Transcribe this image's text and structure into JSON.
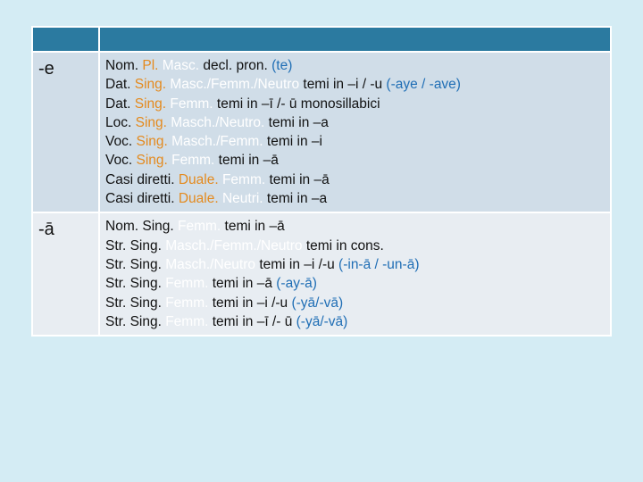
{
  "colors": {
    "header": "#2b7aa0",
    "row1": "#d0dde8",
    "row2": "#e8edf2",
    "orange": "#e48a1e",
    "blue": "#1f6eb5",
    "white": "#ffffff"
  },
  "rows": [
    {
      "suffix": "-e",
      "lines": [
        {
          "segments": [
            {
              "t": "Nom.",
              "c": "k"
            },
            {
              "t": " Pl.",
              "c": "o"
            },
            {
              "t": " Masc.",
              "c": "w"
            },
            {
              "t": " decl. pron. ",
              "c": "k"
            },
            {
              "t": "(te)",
              "c": "b"
            }
          ]
        },
        {
          "segments": [
            {
              "t": "Dat.",
              "c": "k"
            },
            {
              "t": " Sing.",
              "c": "o"
            },
            {
              "t": " Masc./Femm./Neutro",
              "c": "w"
            },
            {
              "t": " temi in –i / -u ",
              "c": "k"
            },
            {
              "t": "(-aye / -ave)",
              "c": "b"
            }
          ]
        },
        {
          "segments": [
            {
              "t": "Dat.",
              "c": "k"
            },
            {
              "t": " Sing.",
              "c": "o"
            },
            {
              "t": " Femm.",
              "c": "w"
            },
            {
              "t": " temi in –ī /- ū  monosillabici",
              "c": "k"
            }
          ]
        },
        {
          "segments": [
            {
              "t": "Loc.",
              "c": "k"
            },
            {
              "t": " Sing.",
              "c": "o"
            },
            {
              "t": " Masch./Neutro.",
              "c": "w"
            },
            {
              "t": " temi in –a",
              "c": "k"
            }
          ]
        },
        {
          "segments": [
            {
              "t": "Voc.",
              "c": "k"
            },
            {
              "t": " Sing.",
              "c": "o"
            },
            {
              "t": " Masch./Femm.",
              "c": "w"
            },
            {
              "t": " temi in –i",
              "c": "k"
            }
          ]
        },
        {
          "segments": [
            {
              "t": "Voc.",
              "c": "k"
            },
            {
              "t": " Sing.",
              "c": "o"
            },
            {
              "t": " Femm.",
              "c": "w"
            },
            {
              "t": " temi in –ā",
              "c": "k"
            }
          ]
        },
        {
          "segments": [
            {
              "t": "Casi diretti.",
              "c": "k"
            },
            {
              "t": " Duale.",
              "c": "o"
            },
            {
              "t": " Femm.",
              "c": "w"
            },
            {
              "t": " temi in –ā",
              "c": "k"
            }
          ]
        },
        {
          "segments": [
            {
              "t": "Casi diretti.",
              "c": "k"
            },
            {
              "t": " Duale.",
              "c": "o"
            },
            {
              "t": " Neutri.",
              "c": "w"
            },
            {
              "t": " temi in –a",
              "c": "k"
            }
          ]
        }
      ]
    },
    {
      "suffix": "-ā",
      "lines": [
        {
          "segments": [
            {
              "t": "Nom.",
              "c": "k"
            },
            {
              "t": " Sing.",
              "c": "k"
            },
            {
              "t": " Femm.",
              "c": "w"
            },
            {
              "t": " temi in –ā",
              "c": "k"
            }
          ]
        },
        {
          "segments": [
            {
              "t": "Str.",
              "c": "k"
            },
            {
              "t": " Sing.",
              "c": "k"
            },
            {
              "t": " Masch./Femm./Neutro",
              "c": "w"
            },
            {
              "t": " temi in cons.",
              "c": "k"
            }
          ]
        },
        {
          "segments": [
            {
              "t": "Str.",
              "c": "k"
            },
            {
              "t": " Sing.",
              "c": "k"
            },
            {
              "t": " Masch./Neutro",
              "c": "w"
            },
            {
              "t": " temi in –i /-u ",
              "c": "k"
            },
            {
              "t": "(-in-ā / -un-ā)",
              "c": "b"
            }
          ]
        },
        {
          "segments": [
            {
              "t": "Str.",
              "c": "k"
            },
            {
              "t": " Sing.",
              "c": "k"
            },
            {
              "t": " Femm.",
              "c": "w"
            },
            {
              "t": " temi in –ā ",
              "c": "k"
            },
            {
              "t": "(-ay-ā)",
              "c": "b"
            }
          ]
        },
        {
          "segments": [
            {
              "t": "Str.",
              "c": "k"
            },
            {
              "t": " Sing.",
              "c": "k"
            },
            {
              "t": " Femm.",
              "c": "w"
            },
            {
              "t": " temi in –i /-u ",
              "c": "k"
            },
            {
              "t": "(-yā/-vā)",
              "c": "b"
            }
          ]
        },
        {
          "segments": [
            {
              "t": "Str.",
              "c": "k"
            },
            {
              "t": " Sing.",
              "c": "k"
            },
            {
              "t": " Femm.",
              "c": "w"
            },
            {
              "t": " temi in –ī /- ū ",
              "c": "k"
            },
            {
              "t": "(-yā/-vā)",
              "c": "b"
            }
          ]
        }
      ]
    }
  ]
}
